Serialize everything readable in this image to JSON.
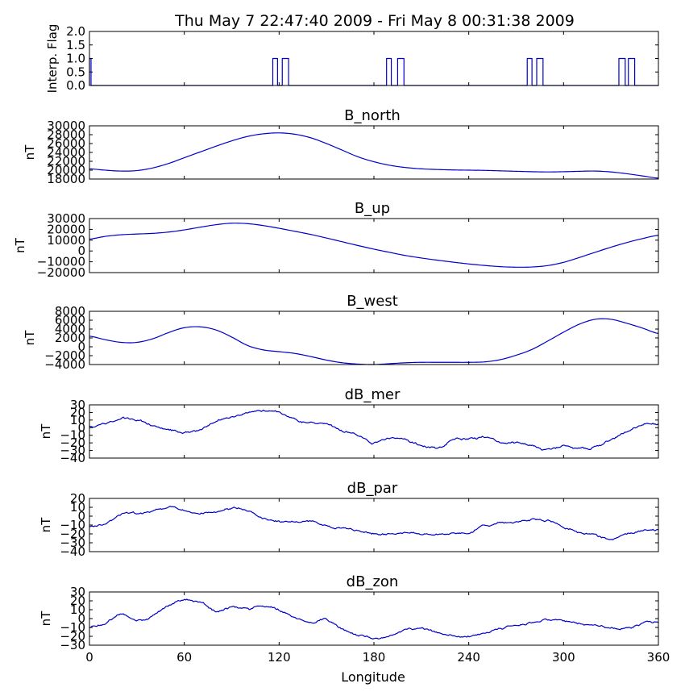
{
  "figure_title": "Thu May  7 22:47:40 2009 - Fri May  8 00:31:38 2009",
  "xlabel": "Longitude",
  "colors": {
    "line": "#0000cc",
    "axes": "#000000",
    "background": "#ffffff"
  },
  "chart_data": [
    {
      "type": "line",
      "title": "",
      "ylabel": "Interp. Flag",
      "xlim": [
        0,
        360
      ],
      "ylim": [
        0,
        2
      ],
      "yticks": [
        "0.0",
        "0.5",
        "1.0",
        "1.5",
        "2.0"
      ],
      "step": true,
      "flag_pulses": [
        [
          0,
          1
        ],
        [
          116,
          119
        ],
        [
          122,
          126
        ],
        [
          188,
          191
        ],
        [
          195,
          199
        ],
        [
          277,
          280
        ],
        [
          283,
          287
        ],
        [
          335,
          339
        ],
        [
          341,
          345
        ]
      ]
    },
    {
      "type": "line",
      "title": "B_north",
      "ylabel": "nT",
      "xlim": [
        0,
        360
      ],
      "ylim": [
        18000,
        30000
      ],
      "yticks": [
        "18000",
        "20000",
        "22000",
        "24000",
        "26000",
        "28000",
        "30000"
      ],
      "x": [
        0,
        10,
        20,
        30,
        40,
        50,
        60,
        70,
        80,
        90,
        100,
        110,
        120,
        130,
        140,
        150,
        160,
        170,
        180,
        190,
        200,
        210,
        220,
        230,
        240,
        250,
        260,
        270,
        280,
        290,
        300,
        310,
        320,
        330,
        340,
        350,
        360
      ],
      "values": [
        20300,
        20000,
        19800,
        19900,
        20500,
        21500,
        22800,
        24100,
        25400,
        26600,
        27600,
        28200,
        28400,
        28100,
        27300,
        26000,
        24500,
        23000,
        21900,
        21100,
        20600,
        20300,
        20150,
        20050,
        20000,
        19950,
        19850,
        19750,
        19650,
        19600,
        19650,
        19750,
        19800,
        19600,
        19200,
        18700,
        18200
      ]
    },
    {
      "type": "line",
      "title": "B_up",
      "ylabel": "nT",
      "xlim": [
        0,
        360
      ],
      "ylim": [
        -20000,
        30000
      ],
      "yticks": [
        "−20000",
        "−10000",
        "0",
        "10000",
        "20000",
        "30000"
      ],
      "x": [
        0,
        10,
        20,
        30,
        40,
        50,
        60,
        70,
        80,
        90,
        100,
        110,
        120,
        130,
        140,
        150,
        160,
        170,
        180,
        190,
        200,
        210,
        220,
        230,
        240,
        250,
        260,
        270,
        280,
        290,
        300,
        310,
        320,
        330,
        340,
        350,
        360
      ],
      "values": [
        11000,
        13500,
        15000,
        15700,
        16300,
        17500,
        19500,
        22000,
        24300,
        25700,
        25300,
        23500,
        21000,
        18200,
        15300,
        12000,
        8500,
        5000,
        1700,
        -1300,
        -4200,
        -6500,
        -8500,
        -10300,
        -12000,
        -13400,
        -14500,
        -15000,
        -14800,
        -13500,
        -10500,
        -6000,
        -1200,
        3500,
        7800,
        11500,
        14500
      ]
    },
    {
      "type": "line",
      "title": "B_west",
      "ylabel": "nT",
      "xlim": [
        0,
        360
      ],
      "ylim": [
        -4000,
        8000
      ],
      "yticks": [
        "−4000",
        "−2000",
        "0",
        "2000",
        "4000",
        "6000",
        "8000"
      ],
      "x": [
        0,
        10,
        20,
        30,
        40,
        50,
        60,
        70,
        80,
        90,
        100,
        110,
        120,
        130,
        140,
        150,
        160,
        170,
        180,
        190,
        200,
        210,
        220,
        230,
        240,
        250,
        260,
        270,
        280,
        290,
        300,
        310,
        320,
        330,
        340,
        350,
        360
      ],
      "values": [
        2400,
        1600,
        1000,
        1000,
        1800,
        3200,
        4300,
        4500,
        3800,
        2200,
        300,
        -700,
        -1100,
        -1500,
        -2200,
        -3000,
        -3600,
        -3900,
        -4000,
        -3800,
        -3600,
        -3500,
        -3500,
        -3500,
        -3500,
        -3400,
        -2900,
        -1900,
        -600,
        1300,
        3300,
        5100,
        6200,
        6200,
        5300,
        4200,
        3000
      ]
    },
    {
      "type": "line",
      "title": "dB_mer",
      "ylabel": "nT",
      "xlim": [
        0,
        360
      ],
      "ylim": [
        -40,
        30
      ],
      "yticks": [
        "−40",
        "−30",
        "−20",
        "−10",
        "0",
        "10",
        "20",
        "30"
      ],
      "noisy": true,
      "x": [
        0,
        10,
        20,
        30,
        40,
        50,
        60,
        70,
        80,
        90,
        100,
        110,
        120,
        130,
        140,
        150,
        160,
        170,
        180,
        190,
        200,
        210,
        220,
        230,
        240,
        250,
        260,
        270,
        280,
        290,
        300,
        310,
        320,
        330,
        340,
        350,
        360
      ],
      "values": [
        2,
        5,
        12,
        10,
        3,
        -2,
        -5,
        -3,
        8,
        15,
        20,
        23,
        21,
        12,
        6,
        3,
        -5,
        -10,
        -20,
        -14,
        -15,
        -24,
        -26,
        -16,
        -14,
        -13,
        -19,
        -20,
        -24,
        -29,
        -24,
        -28,
        -25,
        -16,
        -6,
        3,
        5
      ]
    },
    {
      "type": "line",
      "title": "dB_par",
      "ylabel": "nT",
      "xlim": [
        0,
        360
      ],
      "ylim": [
        -40,
        20
      ],
      "yticks": [
        "−40",
        "−30",
        "−20",
        "−10",
        "0",
        "10",
        "20"
      ],
      "noisy": true,
      "x": [
        0,
        10,
        20,
        30,
        40,
        50,
        60,
        70,
        80,
        90,
        100,
        110,
        120,
        130,
        140,
        150,
        160,
        170,
        180,
        190,
        200,
        210,
        220,
        230,
        240,
        250,
        260,
        270,
        280,
        290,
        300,
        310,
        320,
        330,
        340,
        350,
        360
      ],
      "values": [
        -12,
        -9,
        2,
        3,
        6,
        10,
        6,
        4,
        5,
        8,
        6,
        -2,
        -6,
        -7,
        -6,
        -12,
        -14,
        -16,
        -20,
        -20,
        -19,
        -20,
        -20,
        -20,
        -19,
        -11,
        -8,
        -6,
        -4,
        -5,
        -12,
        -18,
        -22,
        -26,
        -21,
        -16,
        -15
      ]
    },
    {
      "type": "line",
      "title": "dB_zon",
      "ylabel": "nT",
      "xlim": [
        0,
        360
      ],
      "ylim": [
        -30,
        30
      ],
      "yticks": [
        "−30",
        "−20",
        "−10",
        "0",
        "10",
        "20",
        "30"
      ],
      "xticks": [
        "0",
        "60",
        "120",
        "180",
        "240",
        "300",
        "360"
      ],
      "noisy": true,
      "x": [
        0,
        10,
        20,
        30,
        40,
        50,
        60,
        70,
        80,
        90,
        100,
        110,
        120,
        130,
        140,
        150,
        160,
        170,
        180,
        190,
        200,
        210,
        220,
        230,
        240,
        250,
        260,
        270,
        280,
        290,
        300,
        310,
        320,
        330,
        340,
        350,
        360
      ],
      "values": [
        -10,
        -6,
        5,
        -3,
        4,
        15,
        20,
        18,
        8,
        13,
        10,
        14,
        10,
        2,
        -5,
        -2,
        -12,
        -18,
        -22,
        -20,
        -14,
        -12,
        -16,
        -20,
        -20,
        -16,
        -12,
        -8,
        -4,
        -1,
        -3,
        -6,
        -8,
        -10,
        -12,
        -6,
        -4
      ]
    }
  ]
}
